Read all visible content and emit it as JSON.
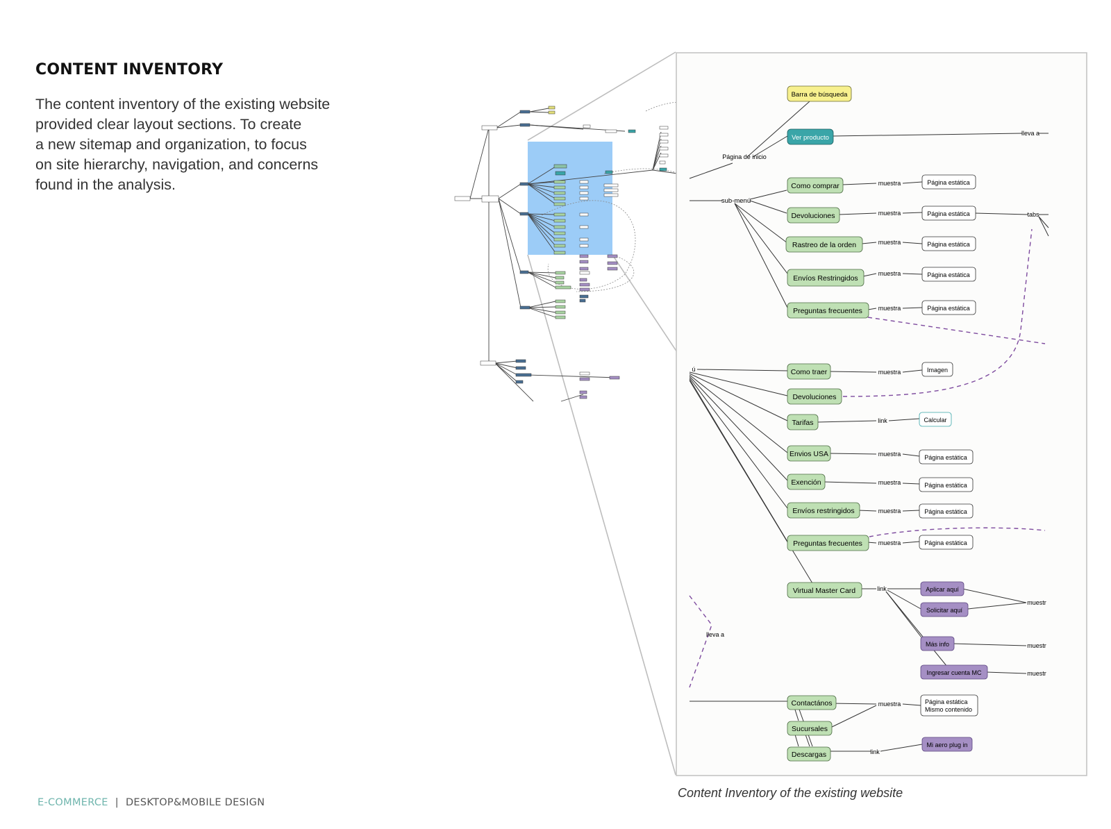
{
  "page": {
    "heading": "CONTENT INVENTORY",
    "intro_lines": [
      "The content inventory of the existing website",
      "provided clear layout sections.  To create",
      "a new sitemap and organization, to focus",
      "on site hierarchy, navigation, and concerns",
      "found in the analysis."
    ],
    "footer_left": "E-COMMERCE",
    "footer_separator": "|",
    "footer_right": "DESKTOP&MOBILE DESIGN",
    "caption": "Content Inventory of the existing website"
  },
  "colors": {
    "green_node": "#bfe0b4",
    "teal_node": "#3aa5a8",
    "yellow_node": "#f7f08e",
    "purple_node": "#a58fc4",
    "highlight": "#9cccf7",
    "dashed_purple": "#7d4a9e",
    "footer_accent": "#6fb5ad"
  },
  "zoom": {
    "nodes": {
      "barra": "Barra de búsqueda",
      "ver_producto": "Ver producto",
      "lleva_a_top": "lleva a",
      "pagina_inicio": "Página de inicio",
      "sub_menu": "sub-menú",
      "menu_frag": "ú",
      "como_comprar": "Como comprar",
      "devoluciones_1": "Devoluciones",
      "rastreo": "Rastreo de la orden",
      "envios_restr_1": "Envíos Restringidos",
      "preguntas_1": "Preguntas frecuentes",
      "como_traer": "Como traer",
      "devoluciones_2": "Devoluciones",
      "tarifas": "Tarifas",
      "envios_usa": "Envios USA",
      "exencion": "Exención",
      "envios_restr_2": "Envíos restringidos",
      "preguntas_2": "Preguntas frecuentes",
      "virtual_mc": "Virtual Master Card",
      "contactanos": "Contactános",
      "sucursales": "Sucursales",
      "descargas": "Descargas",
      "pagina_estatica": "Página estática",
      "mismo_contenido": "Mismo contenido",
      "imagen": "Imagen",
      "calcular": "Calcular",
      "aplicar": "Aplicar aquí",
      "solicitar": "Solicitar aquí",
      "mas_info": "Más info",
      "ingresar_mc": "Ingresar cuenta MC",
      "mi_aero": "Mi aero plug in",
      "muestra": "muestra",
      "link": "link",
      "tabs": "tabs",
      "muestr_frag": "muestr",
      "lleva_a": "lleva a"
    }
  }
}
